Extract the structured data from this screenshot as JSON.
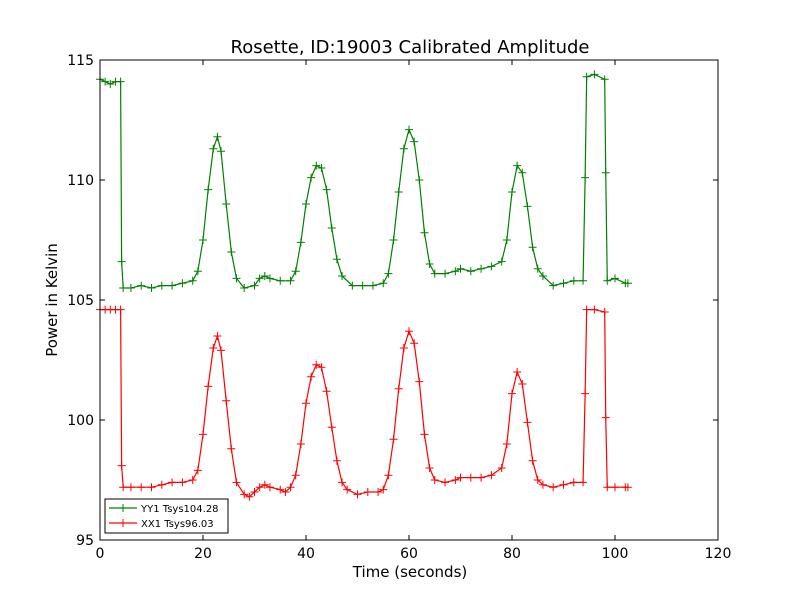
{
  "chart_data": {
    "type": "line",
    "title": "Rosette, ID:19003 Calibrated Amplitude",
    "xlabel": "Time (seconds)",
    "ylabel": "Power in Kelvin",
    "xlim": [
      0,
      120
    ],
    "ylim": [
      95,
      115
    ],
    "xticks": [
      0,
      20,
      40,
      60,
      80,
      100,
      120
    ],
    "yticks": [
      95,
      100,
      105,
      110,
      115
    ],
    "grid": false,
    "legend_position": "lower-left",
    "series": [
      {
        "name": "YY1 Tsys104.28",
        "color": "#008000",
        "marker": "+",
        "points": [
          [
            0,
            114.2
          ],
          [
            1,
            114.1
          ],
          [
            2,
            114.0
          ],
          [
            3,
            114.1
          ],
          [
            4,
            114.1
          ],
          [
            4.2,
            106.6
          ],
          [
            4.5,
            105.5
          ],
          [
            6,
            105.5
          ],
          [
            8,
            105.6
          ],
          [
            10,
            105.5
          ],
          [
            12,
            105.6
          ],
          [
            14,
            105.6
          ],
          [
            16,
            105.7
          ],
          [
            18,
            105.8
          ],
          [
            19,
            106.2
          ],
          [
            20,
            107.5
          ],
          [
            21,
            109.6
          ],
          [
            22,
            111.3
          ],
          [
            22.8,
            111.8
          ],
          [
            23.5,
            111.2
          ],
          [
            24.5,
            109.0
          ],
          [
            25.5,
            107.0
          ],
          [
            26.5,
            105.9
          ],
          [
            28,
            105.5
          ],
          [
            30,
            105.6
          ],
          [
            31,
            105.9
          ],
          [
            32,
            106.0
          ],
          [
            33,
            105.9
          ],
          [
            35,
            105.8
          ],
          [
            37,
            105.8
          ],
          [
            38,
            106.2
          ],
          [
            39,
            107.4
          ],
          [
            40,
            109.0
          ],
          [
            41,
            110.1
          ],
          [
            42,
            110.6
          ],
          [
            43,
            110.5
          ],
          [
            44,
            109.6
          ],
          [
            45,
            108.0
          ],
          [
            46,
            106.7
          ],
          [
            47,
            106.0
          ],
          [
            49,
            105.6
          ],
          [
            51,
            105.6
          ],
          [
            53,
            105.6
          ],
          [
            55,
            105.7
          ],
          [
            56,
            106.1
          ],
          [
            57,
            107.5
          ],
          [
            58,
            109.5
          ],
          [
            59,
            111.3
          ],
          [
            60,
            112.1
          ],
          [
            61,
            111.6
          ],
          [
            62,
            110.0
          ],
          [
            63,
            107.8
          ],
          [
            64,
            106.5
          ],
          [
            65,
            106.1
          ],
          [
            67,
            106.1
          ],
          [
            69,
            106.2
          ],
          [
            70,
            106.3
          ],
          [
            72,
            106.2
          ],
          [
            74,
            106.3
          ],
          [
            76,
            106.4
          ],
          [
            78,
            106.6
          ],
          [
            79,
            107.5
          ],
          [
            80,
            109.5
          ],
          [
            81,
            110.6
          ],
          [
            82,
            110.3
          ],
          [
            83,
            108.9
          ],
          [
            84,
            107.2
          ],
          [
            85,
            106.3
          ],
          [
            86,
            106.0
          ],
          [
            88,
            105.6
          ],
          [
            90,
            105.7
          ],
          [
            92,
            105.8
          ],
          [
            93.8,
            105.8
          ],
          [
            94.2,
            110.1
          ],
          [
            94.5,
            114.3
          ],
          [
            96,
            114.4
          ],
          [
            98,
            114.2
          ],
          [
            98.2,
            110.3
          ],
          [
            98.5,
            105.8
          ],
          [
            100,
            105.9
          ],
          [
            102,
            105.7
          ],
          [
            102.5,
            105.7
          ]
        ]
      },
      {
        "name": "XX1 Tsys96.03",
        "color": "#ff0000",
        "marker": "+",
        "points": [
          [
            0,
            104.6
          ],
          [
            1,
            104.6
          ],
          [
            2,
            104.6
          ],
          [
            3,
            104.6
          ],
          [
            4,
            104.6
          ],
          [
            4.2,
            98.1
          ],
          [
            4.5,
            97.2
          ],
          [
            6,
            97.2
          ],
          [
            8,
            97.2
          ],
          [
            10,
            97.2
          ],
          [
            12,
            97.3
          ],
          [
            14,
            97.4
          ],
          [
            16,
            97.4
          ],
          [
            18,
            97.5
          ],
          [
            19,
            97.9
          ],
          [
            20,
            99.4
          ],
          [
            21,
            101.4
          ],
          [
            22,
            103.0
          ],
          [
            22.8,
            103.5
          ],
          [
            23.5,
            102.9
          ],
          [
            24.5,
            100.8
          ],
          [
            25.5,
            98.8
          ],
          [
            26.5,
            97.4
          ],
          [
            28,
            96.9
          ],
          [
            29,
            96.8
          ],
          [
            30,
            97.0
          ],
          [
            31,
            97.2
          ],
          [
            32,
            97.3
          ],
          [
            33,
            97.2
          ],
          [
            35,
            97.1
          ],
          [
            36,
            97.0
          ],
          [
            37,
            97.2
          ],
          [
            38,
            97.7
          ],
          [
            39,
            99.0
          ],
          [
            40,
            100.7
          ],
          [
            41,
            101.8
          ],
          [
            42,
            102.3
          ],
          [
            43,
            102.2
          ],
          [
            44,
            101.2
          ],
          [
            45,
            99.7
          ],
          [
            46,
            98.3
          ],
          [
            47,
            97.4
          ],
          [
            48,
            97.1
          ],
          [
            50,
            96.9
          ],
          [
            52,
            97.0
          ],
          [
            54,
            97.0
          ],
          [
            55,
            97.1
          ],
          [
            56,
            97.7
          ],
          [
            57,
            99.2
          ],
          [
            58,
            101.3
          ],
          [
            59,
            103.0
          ],
          [
            60,
            103.7
          ],
          [
            61,
            103.2
          ],
          [
            62,
            101.6
          ],
          [
            63,
            99.4
          ],
          [
            64,
            98.0
          ],
          [
            65,
            97.5
          ],
          [
            67,
            97.4
          ],
          [
            69,
            97.5
          ],
          [
            70,
            97.6
          ],
          [
            72,
            97.6
          ],
          [
            74,
            97.6
          ],
          [
            76,
            97.7
          ],
          [
            78,
            98.0
          ],
          [
            79,
            99.0
          ],
          [
            80,
            101.1
          ],
          [
            81,
            102.0
          ],
          [
            82,
            101.5
          ],
          [
            83,
            99.9
          ],
          [
            84,
            98.3
          ],
          [
            85,
            97.5
          ],
          [
            86,
            97.3
          ],
          [
            88,
            97.2
          ],
          [
            90,
            97.3
          ],
          [
            92,
            97.4
          ],
          [
            93.8,
            97.4
          ],
          [
            94.2,
            101.1
          ],
          [
            94.5,
            104.6
          ],
          [
            96,
            104.6
          ],
          [
            98,
            104.5
          ],
          [
            98.2,
            100.1
          ],
          [
            98.5,
            97.2
          ],
          [
            100,
            97.2
          ],
          [
            102,
            97.2
          ],
          [
            102.5,
            97.2
          ]
        ]
      }
    ]
  }
}
